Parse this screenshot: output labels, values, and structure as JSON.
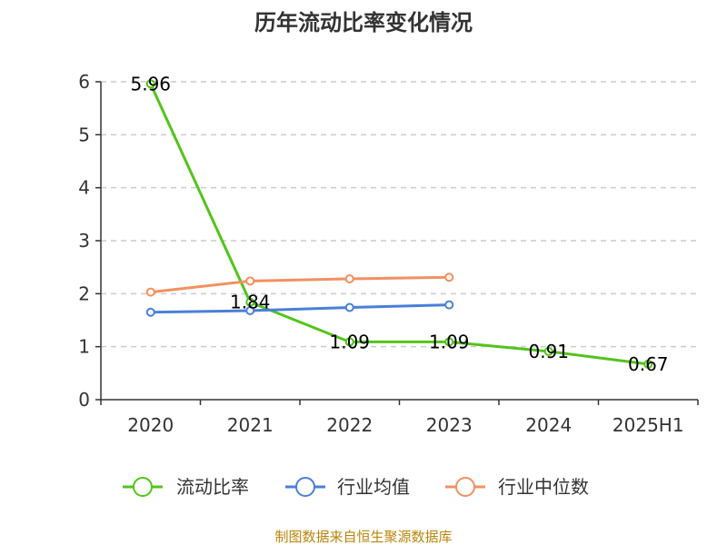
{
  "chart_data": {
    "type": "line",
    "title": "历年流动比率变化情况",
    "categories": [
      "2020",
      "2021",
      "2022",
      "2023",
      "2024",
      "2025H1"
    ],
    "ylim": [
      0,
      6
    ],
    "yticks": [
      0,
      1,
      2,
      3,
      4,
      5,
      6
    ],
    "grid": true,
    "legend_position": "bottom",
    "series": [
      {
        "name": "流动比率",
        "color": "#52c41a",
        "values": [
          5.96,
          1.84,
          1.09,
          1.09,
          0.91,
          0.67
        ],
        "labels": [
          "5.96",
          "1.84",
          "1.09",
          "1.09",
          "0.91",
          "0.67"
        ],
        "show_labels": true
      },
      {
        "name": "行业均值",
        "color": "#4a7fdb",
        "values": [
          1.65,
          1.68,
          1.74,
          1.79,
          null,
          null
        ],
        "show_labels": false
      },
      {
        "name": "行业中位数",
        "color": "#f39060",
        "values": [
          2.03,
          2.24,
          2.28,
          2.31,
          null,
          null
        ],
        "show_labels": false
      }
    ],
    "source": "制图数据来自恒生聚源数据库"
  }
}
